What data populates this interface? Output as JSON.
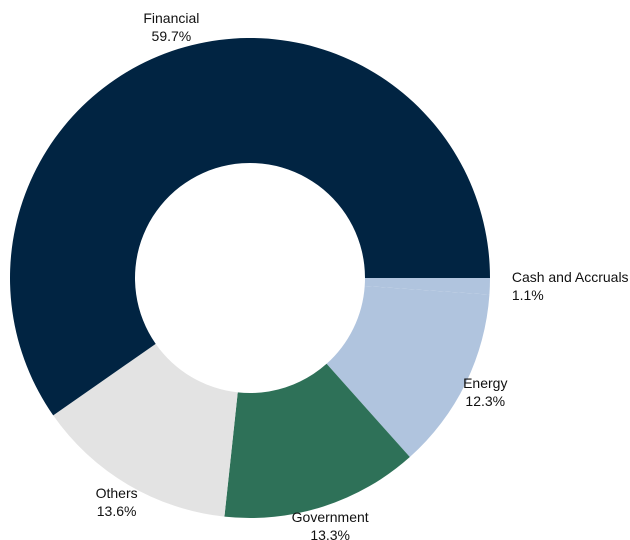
{
  "chart_data": {
    "type": "donut",
    "categories": [
      "Cash and Accruals",
      "Energy",
      "Government",
      "Others",
      "Financial"
    ],
    "values": [
      1.1,
      12.3,
      13.3,
      13.6,
      59.7
    ],
    "value_labels": [
      "1.1%",
      "12.3%",
      "13.3%",
      "13.6%",
      "59.7%"
    ],
    "colors": [
      "#b0c4de",
      "#b0c4de",
      "#2e7158",
      "#e3e3e3",
      "#012442"
    ]
  }
}
